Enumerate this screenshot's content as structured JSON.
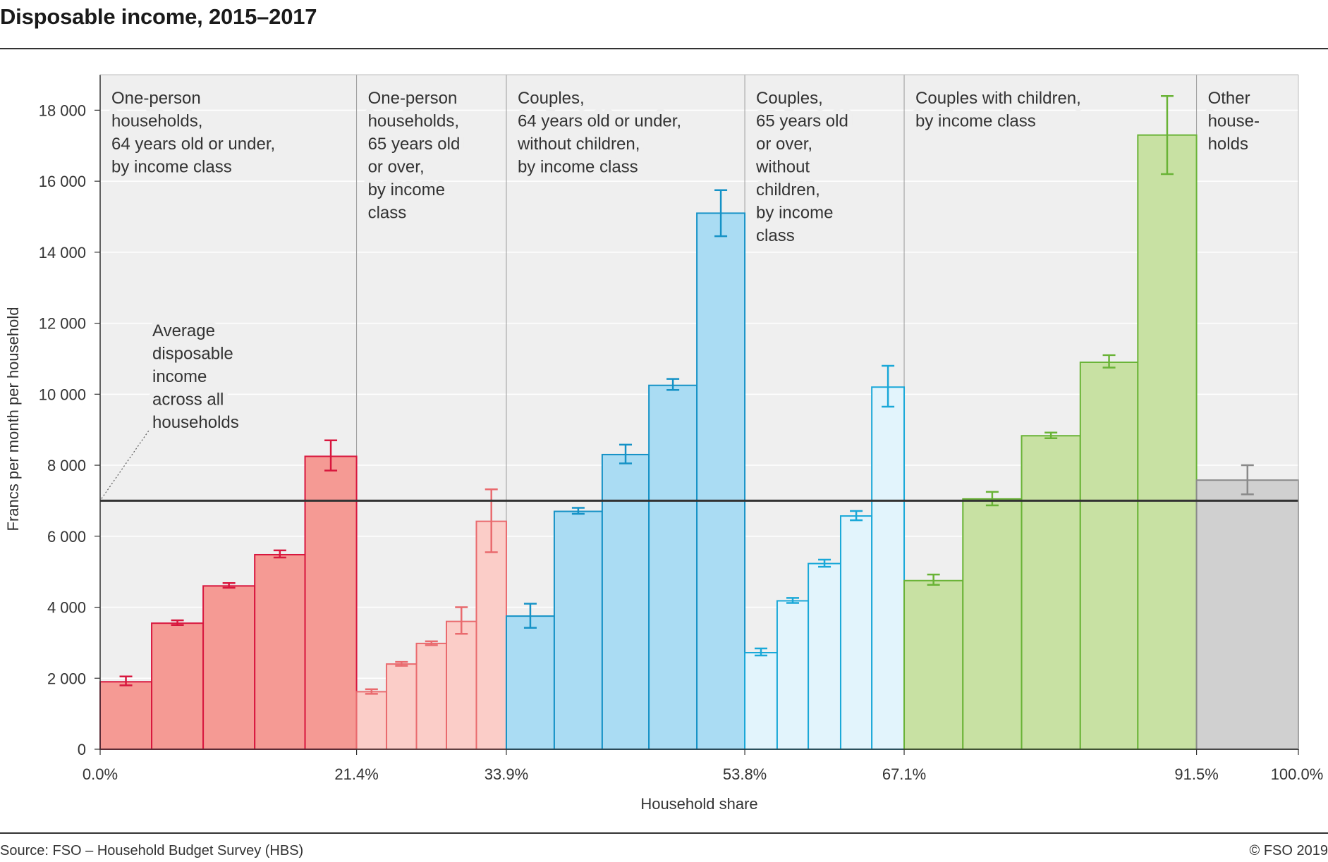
{
  "header": {
    "title": "Disposable income, 2015–2017"
  },
  "footer": {
    "source": "Source: FSO – Household Budget Survey (HBS)",
    "copyright": "© FSO 2019"
  },
  "colors": {
    "panel_bg": "#efefef",
    "grid": "#ffffff",
    "average_line": "#333333",
    "group_divider": "#9a9a9a"
  },
  "chart_data": {
    "type": "bar",
    "subtype": "variable-width histogram with error bars",
    "ylabel": "Francs per month per household",
    "xlabel": "Household share",
    "ylim": [
      0,
      19000
    ],
    "yticks": [
      0,
      2000,
      4000,
      6000,
      8000,
      10000,
      12000,
      14000,
      16000,
      18000
    ],
    "ytick_labels": [
      "0",
      "2 000",
      "4 000",
      "6 000",
      "8 000",
      "10 000",
      "12 000",
      "14 000",
      "16 000",
      "18 000"
    ],
    "xlim": [
      0,
      100
    ],
    "xticks": [
      0,
      21.4,
      33.9,
      53.8,
      67.1,
      91.5,
      100
    ],
    "xtick_labels": [
      "0.0%",
      "21.4%",
      "33.9%",
      "53.8%",
      "67.1%",
      "91.5%",
      "100.0%"
    ],
    "average": {
      "value": 7000,
      "label": [
        "Average",
        "disposable",
        "income",
        "across all",
        "households"
      ]
    },
    "grid": true,
    "groups": [
      {
        "label": [
          "One-person",
          "households,",
          "64 years old or under,",
          "by income class"
        ],
        "fill": "#f59a94",
        "stroke": "#d8173e",
        "bars": [
          {
            "x0": 0.0,
            "x1": 4.3,
            "value": 1900,
            "err_low": 1800,
            "err_high": 2050
          },
          {
            "x0": 4.3,
            "x1": 8.6,
            "value": 3550,
            "err_low": 3500,
            "err_high": 3630
          },
          {
            "x0": 8.6,
            "x1": 12.9,
            "value": 4600,
            "err_low": 4550,
            "err_high": 4680
          },
          {
            "x0": 12.9,
            "x1": 17.1,
            "value": 5480,
            "err_low": 5400,
            "err_high": 5600
          },
          {
            "x0": 17.1,
            "x1": 21.4,
            "value": 8250,
            "err_low": 7850,
            "err_high": 8700
          }
        ]
      },
      {
        "label": [
          "One-person",
          "households,",
          "65 years old",
          "or over,",
          "by income",
          "class"
        ],
        "fill": "#fbcdc8",
        "stroke": "#e96a6e",
        "bars": [
          {
            "x0": 21.4,
            "x1": 23.9,
            "value": 1620,
            "err_low": 1560,
            "err_high": 1690
          },
          {
            "x0": 23.9,
            "x1": 26.4,
            "value": 2400,
            "err_low": 2350,
            "err_high": 2460
          },
          {
            "x0": 26.4,
            "x1": 28.9,
            "value": 2980,
            "err_low": 2930,
            "err_high": 3040
          },
          {
            "x0": 28.9,
            "x1": 31.4,
            "value": 3600,
            "err_low": 3250,
            "err_high": 4000
          },
          {
            "x0": 31.4,
            "x1": 33.9,
            "value": 6420,
            "err_low": 5550,
            "err_high": 7320
          }
        ]
      },
      {
        "label": [
          "Couples,",
          "64 years old or under,",
          "without children,",
          "by income class"
        ],
        "fill": "#aadcf3",
        "stroke": "#1592c6",
        "bars": [
          {
            "x0": 33.9,
            "x1": 37.9,
            "value": 3750,
            "err_low": 3420,
            "err_high": 4100
          },
          {
            "x0": 37.9,
            "x1": 41.9,
            "value": 6700,
            "err_low": 6630,
            "err_high": 6800
          },
          {
            "x0": 41.9,
            "x1": 45.8,
            "value": 8300,
            "err_low": 8050,
            "err_high": 8580
          },
          {
            "x0": 45.8,
            "x1": 49.8,
            "value": 10250,
            "err_low": 10120,
            "err_high": 10430
          },
          {
            "x0": 49.8,
            "x1": 53.8,
            "value": 15100,
            "err_low": 14450,
            "err_high": 15750
          }
        ]
      },
      {
        "label": [
          "Couples,",
          "65 years old",
          "or over,",
          "without",
          "children,",
          "by income",
          "class"
        ],
        "fill": "#e2f4fc",
        "stroke": "#1aa8d8",
        "bars": [
          {
            "x0": 53.8,
            "x1": 56.5,
            "value": 2720,
            "err_low": 2640,
            "err_high": 2840
          },
          {
            "x0": 56.5,
            "x1": 59.1,
            "value": 4180,
            "err_low": 4120,
            "err_high": 4260
          },
          {
            "x0": 59.1,
            "x1": 61.8,
            "value": 5230,
            "err_low": 5140,
            "err_high": 5340
          },
          {
            "x0": 61.8,
            "x1": 64.4,
            "value": 6570,
            "err_low": 6450,
            "err_high": 6710
          },
          {
            "x0": 64.4,
            "x1": 67.1,
            "value": 10200,
            "err_low": 9650,
            "err_high": 10800
          }
        ]
      },
      {
        "label": [
          "Couples with children,",
          "by income class"
        ],
        "fill": "#c8e1a3",
        "stroke": "#69b336",
        "bars": [
          {
            "x0": 67.1,
            "x1": 72.0,
            "value": 4750,
            "err_low": 4630,
            "err_high": 4920
          },
          {
            "x0": 72.0,
            "x1": 76.9,
            "value": 7050,
            "err_low": 6870,
            "err_high": 7250
          },
          {
            "x0": 76.9,
            "x1": 81.8,
            "value": 8830,
            "err_low": 8760,
            "err_high": 8920
          },
          {
            "x0": 81.8,
            "x1": 86.6,
            "value": 10900,
            "err_low": 10750,
            "err_high": 11100
          },
          {
            "x0": 86.6,
            "x1": 91.5,
            "value": 17300,
            "err_low": 16200,
            "err_high": 18400
          }
        ]
      },
      {
        "label": [
          "Other",
          "house-",
          "holds"
        ],
        "fill": "#d0d0d0",
        "stroke": "#8a8a8a",
        "bars": [
          {
            "x0": 91.5,
            "x1": 100.0,
            "value": 7580,
            "err_low": 7180,
            "err_high": 8000
          }
        ]
      }
    ]
  }
}
